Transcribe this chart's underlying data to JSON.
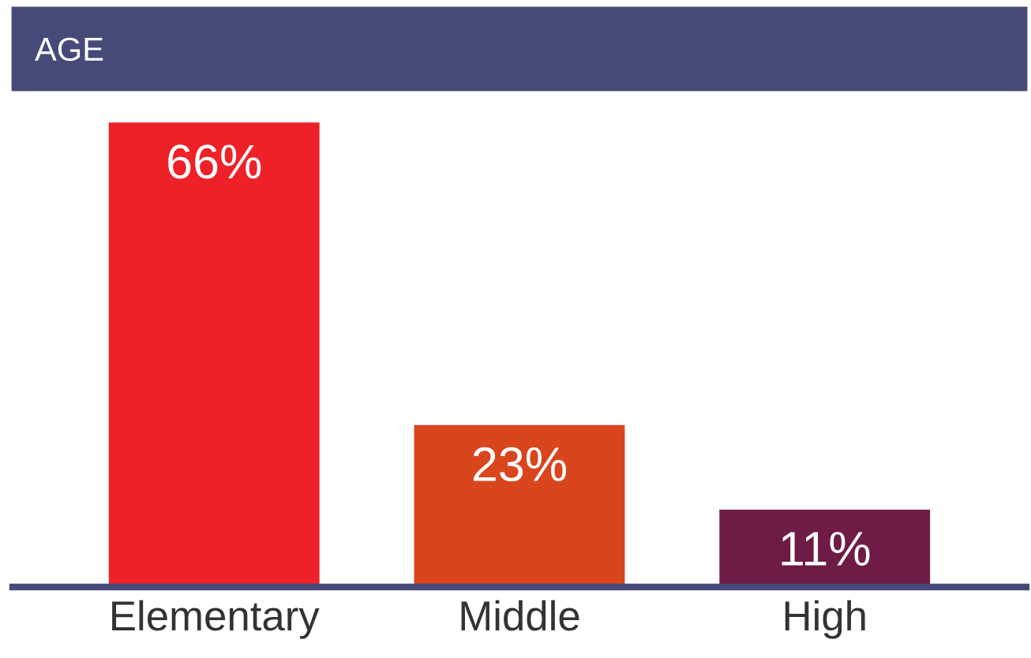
{
  "chart_data": {
    "type": "bar",
    "title": "AGE",
    "categories": [
      "Elementary",
      "Middle",
      "High"
    ],
    "values": [
      66,
      23,
      11
    ],
    "colors": [
      "#ee2128",
      "#d9461e",
      "#6e1c45"
    ],
    "data_labels": true,
    "value_labels": [
      "66%",
      "23%",
      "11%"
    ],
    "grid": false,
    "legend": false
  }
}
